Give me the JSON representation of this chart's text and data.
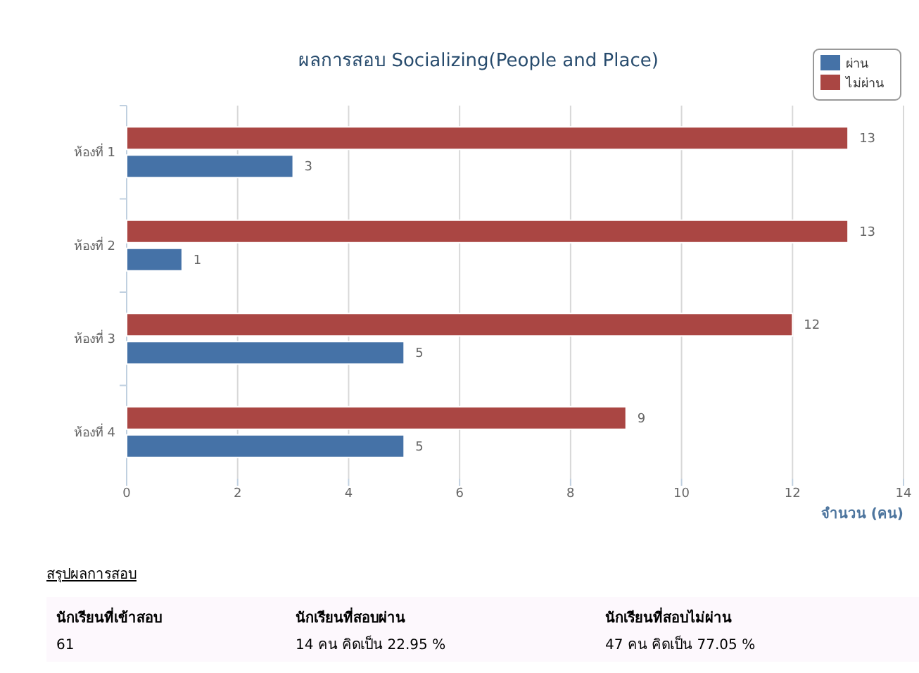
{
  "chart_data": {
    "type": "bar",
    "orientation": "horizontal",
    "title": "ผลการสอบ Socializing(People and Place)",
    "xlabel": "จำนวน (คน)",
    "categories": [
      "ห้องที่ 1",
      "ห้องที่ 2",
      "ห้องที่ 3",
      "ห้องที่ 4"
    ],
    "series": [
      {
        "name": "ผ่าน",
        "color": "#4572a7",
        "values": [
          3,
          1,
          5,
          5
        ]
      },
      {
        "name": "ไม่ผ่าน",
        "color": "#aa4643",
        "values": [
          13,
          13,
          12,
          9
        ]
      }
    ],
    "xlim": [
      0,
      14
    ],
    "xticks": [
      0,
      2,
      4,
      6,
      8,
      10,
      12,
      14
    ],
    "grid": "x",
    "legend": "top right",
    "data_labels": true,
    "annotations": [
      "สรุปผลการสอบ",
      "นักเรียนที่เข้าสอบ",
      "61",
      "นักเรียนที่สอบผ่าน",
      "14 คน คิดเป็น 22.95 %",
      "นักเรียนที่สอบไม่ผ่าน",
      "47 คน คิดเป็น 77.05 %"
    ]
  }
}
